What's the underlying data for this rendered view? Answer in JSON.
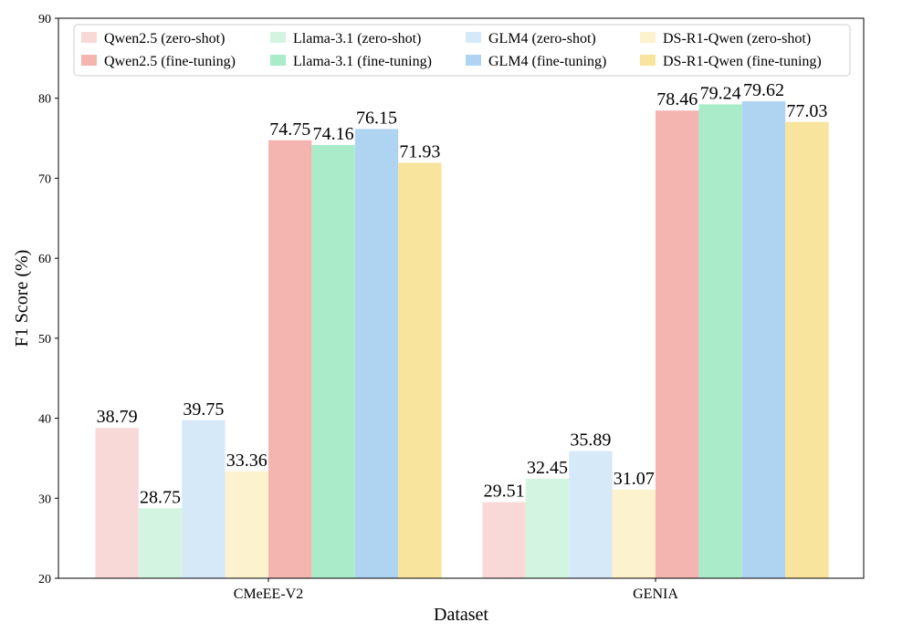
{
  "chart_data": {
    "type": "bar",
    "title": "",
    "xlabel": "Dataset",
    "ylabel": "F1 Score (%)",
    "ylim": [
      20,
      90
    ],
    "yticks": [
      20,
      30,
      40,
      50,
      60,
      70,
      80,
      90
    ],
    "categories": [
      "CMeEE-V2",
      "GENIA"
    ],
    "grid": false,
    "legend_position": "top",
    "series": [
      {
        "name": "Qwen2.5 (zero-shot)",
        "color": "#f9d9d7",
        "values": [
          38.79,
          29.51
        ],
        "labels": [
          "38.79",
          "29.51"
        ]
      },
      {
        "name": "Llama-3.1 (zero-shot)",
        "color": "#d4f4e2",
        "values": [
          28.75,
          32.45
        ],
        "labels": [
          "28.75",
          "32.45"
        ]
      },
      {
        "name": "GLM4 (zero-shot)",
        "color": "#d6e9f8",
        "values": [
          39.75,
          35.89
        ],
        "labels": [
          "39.75",
          "35.89"
        ]
      },
      {
        "name": "DS-R1-Qwen (zero-shot)",
        "color": "#fcf2cd",
        "values": [
          33.36,
          31.07
        ],
        "labels": [
          "33.36",
          "31.07"
        ]
      },
      {
        "name": "Qwen2.5 (fine-tuning)",
        "color": "#f4b5b1",
        "values": [
          74.75,
          78.46
        ],
        "labels": [
          "74.75",
          "78.46"
        ]
      },
      {
        "name": "Llama-3.1 (fine-tuning)",
        "color": "#aaecc9",
        "values": [
          74.16,
          79.24
        ],
        "labels": [
          "74.16",
          "79.24"
        ]
      },
      {
        "name": "GLM4 (fine-tuning)",
        "color": "#afd4f1",
        "values": [
          76.15,
          79.62
        ],
        "labels": [
          "76.15",
          "79.62"
        ]
      },
      {
        "name": "DS-R1-Qwen (fine-tuning)",
        "color": "#f8e49d",
        "values": [
          71.93,
          77.03
        ],
        "labels": [
          "71.93",
          "77.03"
        ]
      }
    ]
  }
}
